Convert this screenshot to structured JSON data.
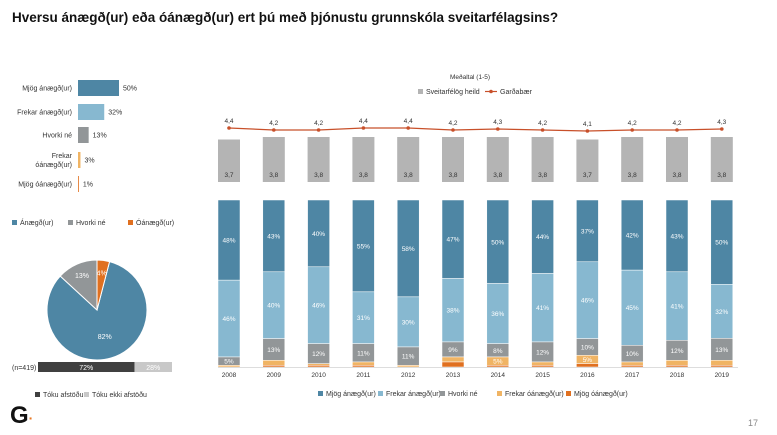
{
  "title": "Hversu ánægð(ur) eða óánægð(ur) ert þú með þjónustu grunnskóla sveitarfélagsins?",
  "page_number": "17",
  "logo": "G",
  "colors": {
    "mjog_anaegd": "#4e86a4",
    "frekar_anaegd": "#87b8d0",
    "hvorki": "#929698",
    "frekar_oanaegd": "#f0b464",
    "mjog_oanaegd": "#e07020",
    "line": "#c8502a",
    "gray_bar": "#b4b4b4",
    "afstada": "#404040",
    "ekki_afstada": "#c8c8c8"
  },
  "chart_data": [
    {
      "type": "bar",
      "orientation": "horizontal",
      "categories": [
        "Mjög ánægð(ur)",
        "Frekar ánægð(ur)",
        "Hvorki né",
        "Frekar óánægð(ur)",
        "Mjög óánægð(ur)"
      ],
      "values": [
        50,
        32,
        13,
        3,
        1
      ],
      "labels": [
        "50%",
        "32%",
        "13%",
        "3%",
        "1%"
      ]
    },
    {
      "type": "pie",
      "legend": [
        "Ánægð(ur)",
        "Hvorki né",
        "Óánægð(ur)"
      ],
      "values": [
        82,
        13,
        4
      ],
      "labels": [
        "82%",
        "13%",
        "4%"
      ],
      "legend_placement": "top"
    },
    {
      "type": "bar",
      "orientation": "horizontal",
      "stacked": true,
      "category": "(n=419)",
      "series": [
        {
          "name": "Tóku afstöðu",
          "values": [
            72
          ],
          "label": "72%"
        },
        {
          "name": "Tóku ekki afstöðu",
          "values": [
            28
          ],
          "label": "28%"
        }
      ],
      "legend_placement": "bottom"
    },
    {
      "type": "bar",
      "title": "Meðaltal (1-5)",
      "categories": [
        "2008",
        "2009",
        "2010",
        "2011",
        "2012",
        "2013",
        "2014",
        "2015",
        "2016",
        "2017",
        "2018",
        "2019"
      ],
      "series": [
        {
          "name": "Sveitarfélög heild",
          "type": "bar",
          "values": [
            3.7,
            3.8,
            3.8,
            3.8,
            3.8,
            3.8,
            3.8,
            3.8,
            3.7,
            3.8,
            3.8,
            3.8
          ],
          "labels": [
            "3,7",
            "3,8",
            "3,8",
            "3,8",
            "3,8",
            "3,8",
            "3,8",
            "3,8",
            "3,7",
            "3,8",
            "3,8",
            "3,8"
          ]
        },
        {
          "name": "Garðabær",
          "type": "line",
          "values": [
            4.4,
            4.2,
            4.2,
            4.4,
            4.4,
            4.2,
            4.3,
            4.2,
            4.1,
            4.2,
            4.2,
            4.3
          ],
          "labels": [
            "4,4",
            "4,2",
            "4,2",
            "4,4",
            "4,4",
            "4,2",
            "4,3",
            "4,2",
            "4,1",
            "4,2",
            "4,2",
            "4,3"
          ]
        }
      ],
      "legend_placement": "top"
    },
    {
      "type": "bar",
      "stacked": true,
      "percent": true,
      "categories": [
        "2008",
        "2009",
        "2010",
        "2011",
        "2012",
        "2013",
        "2014",
        "2015",
        "2016",
        "2017",
        "2018",
        "2019"
      ],
      "series": [
        {
          "name": "Mjög ánægð(ur)",
          "values": [
            48,
            43,
            40,
            55,
            58,
            47,
            50,
            44,
            37,
            42,
            43,
            50
          ]
        },
        {
          "name": "Frekar ánægð(ur)",
          "values": [
            46,
            40,
            46,
            31,
            30,
            38,
            36,
            41,
            46,
            45,
            41,
            32
          ]
        },
        {
          "name": "Hvorki né",
          "values": [
            5,
            13,
            12,
            11,
            11,
            9,
            8,
            12,
            10,
            10,
            12,
            13
          ]
        },
        {
          "name": "Frekar óánægð(ur)",
          "values": [
            1,
            3,
            1,
            2,
            1,
            3,
            5,
            2,
            5,
            2,
            3,
            3
          ]
        },
        {
          "name": "Mjög óánægð(ur)",
          "values": [
            0,
            1,
            1,
            1,
            0,
            3,
            1,
            1,
            2,
            1,
            1,
            1
          ]
        }
      ],
      "legend_placement": "bottom"
    }
  ]
}
